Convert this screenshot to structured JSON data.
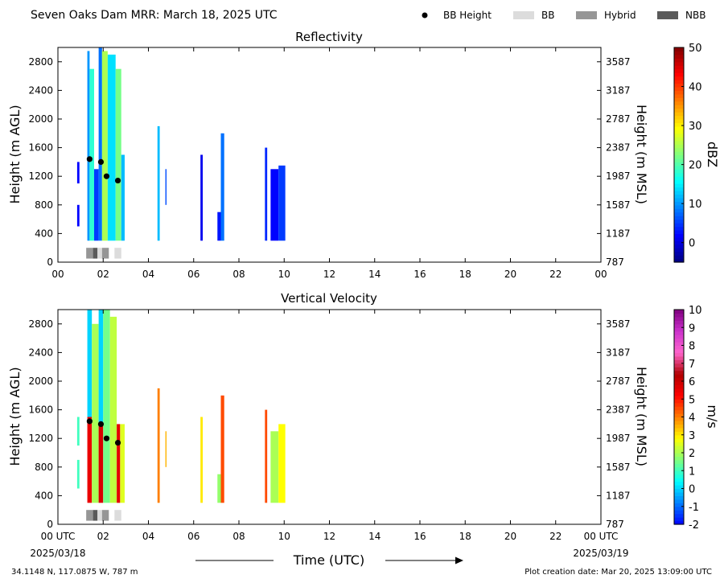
{
  "chart_data": {
    "type": "heatmap",
    "title": "Seven Oaks Dam MRR:  March 18, 2025 UTC",
    "legend": {
      "placement": "top-right",
      "items": [
        {
          "label": "BB Height",
          "kind": "dot",
          "color": "#000000"
        },
        {
          "label": "BB",
          "kind": "swatch",
          "color": "#dcdcdc"
        },
        {
          "label": "Hybrid",
          "kind": "swatch",
          "color": "#969696"
        },
        {
          "label": "NBB",
          "kind": "swatch",
          "color": "#5a5a5a"
        }
      ]
    },
    "x": {
      "label": "Time (UTC)",
      "range_hours": [
        0,
        24
      ],
      "ticks_hours": [
        0,
        2,
        4,
        6,
        8,
        10,
        12,
        14,
        16,
        18,
        20,
        22,
        24
      ],
      "panel1_tick_labels": [
        "00",
        "02",
        "04",
        "06",
        "08",
        "10",
        "12",
        "14",
        "16",
        "18",
        "20",
        "22",
        "00"
      ],
      "panel2_tick_labels": [
        "00 UTC",
        "02",
        "04",
        "06",
        "08",
        "10",
        "12",
        "14",
        "16",
        "18",
        "20",
        "22",
        "00 UTC"
      ],
      "start_date": "2025/03/18",
      "end_date": "2025/03/19"
    },
    "y_left": {
      "label": "Height (m AGL)",
      "range": [
        0,
        3000
      ],
      "ticks": [
        0,
        400,
        800,
        1200,
        1600,
        2000,
        2400,
        2800
      ]
    },
    "y_right": {
      "label": "Height (m MSL)",
      "tick_labels": [
        "787",
        "1187",
        "1587",
        "1987",
        "2387",
        "2787",
        "3187",
        "3587"
      ]
    },
    "bb_height_points": [
      {
        "hour": 1.4,
        "height": 1440
      },
      {
        "hour": 1.9,
        "height": 1400
      },
      {
        "hour": 2.15,
        "height": 1200
      },
      {
        "hour": 2.65,
        "height": 1140
      }
    ],
    "bb_type_strip": [
      {
        "start": 1.25,
        "end": 1.55,
        "type": "Hybrid"
      },
      {
        "start": 1.55,
        "end": 1.75,
        "type": "NBB"
      },
      {
        "start": 1.75,
        "end": 1.95,
        "type": "BB"
      },
      {
        "start": 1.95,
        "end": 2.25,
        "type": "Hybrid"
      },
      {
        "start": 2.5,
        "end": 2.8,
        "type": "BB"
      }
    ],
    "panels": [
      {
        "title": "Reflectivity",
        "colorbar": {
          "label": "dBZ",
          "range": [
            -5,
            50
          ],
          "ticks": [
            "0",
            "10",
            "20",
            "30",
            "40",
            "50"
          ],
          "tick_values": [
            0,
            10,
            20,
            30,
            40,
            50
          ],
          "colors": [
            "#00007f",
            "#0000ff",
            "#007fff",
            "#00ffff",
            "#7fff7f",
            "#ffff00",
            "#ff7f00",
            "#ff0000",
            "#7f0000"
          ]
        },
        "echo_columns": [
          {
            "start": 0.85,
            "end": 0.95,
            "bottom": 1100,
            "top": 1400,
            "value": 2
          },
          {
            "start": 0.85,
            "end": 0.95,
            "bottom": 500,
            "top": 800,
            "value": 2
          },
          {
            "start": 1.3,
            "end": 1.4,
            "bottom": 300,
            "top": 2950,
            "value": 10
          },
          {
            "start": 1.4,
            "end": 1.6,
            "bottom": 300,
            "top": 2700,
            "value": 18
          },
          {
            "start": 1.6,
            "end": 1.8,
            "bottom": 300,
            "top": 1300,
            "value": 5
          },
          {
            "start": 1.8,
            "end": 1.95,
            "bottom": 300,
            "top": 3000,
            "value": 8
          },
          {
            "start": 1.95,
            "end": 2.2,
            "bottom": 300,
            "top": 2950,
            "value": 25
          },
          {
            "start": 2.2,
            "end": 2.55,
            "bottom": 300,
            "top": 2900,
            "value": 14
          },
          {
            "start": 2.55,
            "end": 2.8,
            "bottom": 300,
            "top": 2700,
            "value": 22
          },
          {
            "start": 2.8,
            "end": 2.95,
            "bottom": 300,
            "top": 1500,
            "value": 12
          },
          {
            "start": 4.4,
            "end": 4.5,
            "bottom": 300,
            "top": 1900,
            "value": 12
          },
          {
            "start": 4.75,
            "end": 4.8,
            "bottom": 800,
            "top": 1300,
            "value": 6
          },
          {
            "start": 6.3,
            "end": 6.4,
            "bottom": 300,
            "top": 1500,
            "value": 1
          },
          {
            "start": 7.05,
            "end": 7.2,
            "bottom": 300,
            "top": 700,
            "value": 3
          },
          {
            "start": 7.2,
            "end": 7.35,
            "bottom": 300,
            "top": 1800,
            "value": 8
          },
          {
            "start": 9.15,
            "end": 9.25,
            "bottom": 300,
            "top": 1600,
            "value": 4
          },
          {
            "start": 9.4,
            "end": 9.75,
            "bottom": 300,
            "top": 1300,
            "value": 2
          },
          {
            "start": 9.75,
            "end": 10.05,
            "bottom": 300,
            "top": 1350,
            "value": 5
          }
        ]
      },
      {
        "title": "Vertical Velocity",
        "colorbar": {
          "label": "m/s",
          "range": [
            -2,
            10
          ],
          "ticks": [
            "-2",
            "-1",
            "0",
            "1",
            "2",
            "3",
            "4",
            "5",
            "6",
            "7",
            "8",
            "9",
            "10"
          ],
          "tick_values": [
            -2,
            -1,
            0,
            1,
            2,
            3,
            4,
            5,
            6,
            7,
            8,
            9,
            10
          ],
          "colors": [
            "#0000ff",
            "#007fff",
            "#00ffff",
            "#7fff7f",
            "#ffff00",
            "#ff7f00",
            "#ff0000",
            "#b00000",
            "#ff66cc",
            "#cc33cc",
            "#800080"
          ]
        },
        "echo_columns": [
          {
            "start": 0.85,
            "end": 0.95,
            "bottom": 1100,
            "top": 1500,
            "value": 1
          },
          {
            "start": 0.85,
            "end": 0.95,
            "bottom": 500,
            "top": 900,
            "value": 1
          },
          {
            "start": 1.3,
            "end": 1.5,
            "bottom": 300,
            "top": 1500,
            "value": 5.5
          },
          {
            "start": 1.3,
            "end": 1.5,
            "bottom": 1500,
            "top": 3000,
            "value": 0
          },
          {
            "start": 1.5,
            "end": 1.8,
            "bottom": 300,
            "top": 2800,
            "value": 2
          },
          {
            "start": 1.8,
            "end": 2.0,
            "bottom": 300,
            "top": 1400,
            "value": 5.8
          },
          {
            "start": 1.8,
            "end": 2.0,
            "bottom": 1400,
            "top": 3000,
            "value": 0
          },
          {
            "start": 2.0,
            "end": 2.3,
            "bottom": 300,
            "top": 3000,
            "value": 1.5
          },
          {
            "start": 2.3,
            "end": 2.6,
            "bottom": 300,
            "top": 2900,
            "value": 2.2
          },
          {
            "start": 2.6,
            "end": 2.75,
            "bottom": 300,
            "top": 1400,
            "value": 5.6
          },
          {
            "start": 2.75,
            "end": 2.95,
            "bottom": 300,
            "top": 1400,
            "value": 2.5
          },
          {
            "start": 4.4,
            "end": 4.5,
            "bottom": 300,
            "top": 1900,
            "value": 4
          },
          {
            "start": 4.75,
            "end": 4.8,
            "bottom": 800,
            "top": 1300,
            "value": 3.5
          },
          {
            "start": 6.3,
            "end": 6.4,
            "bottom": 300,
            "top": 1500,
            "value": 3
          },
          {
            "start": 7.05,
            "end": 7.2,
            "bottom": 300,
            "top": 700,
            "value": 1.8
          },
          {
            "start": 7.2,
            "end": 7.35,
            "bottom": 300,
            "top": 1800,
            "value": 4.5
          },
          {
            "start": 9.15,
            "end": 9.25,
            "bottom": 300,
            "top": 1600,
            "value": 4.5
          },
          {
            "start": 9.4,
            "end": 9.75,
            "bottom": 300,
            "top": 1300,
            "value": 2
          },
          {
            "start": 9.75,
            "end": 10.05,
            "bottom": 300,
            "top": 1400,
            "value": 2.8
          }
        ]
      }
    ]
  },
  "footer": {
    "xlabel": "Time (UTC)",
    "location": "34.1148 N, 117.0875 W, 787 m",
    "creation_date": "Plot creation date: Mar 20, 2025 13:09:00 UTC"
  }
}
